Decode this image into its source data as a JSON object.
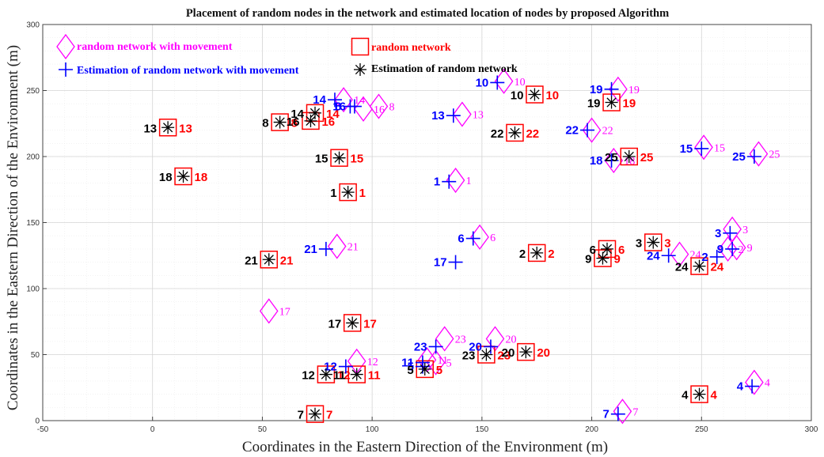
{
  "chart_data": {
    "type": "scatter",
    "title": "Placement of random nodes in the network and estimated location of nodes by proposed Algorithm",
    "xlabel": "Coordinates in the Eastern Direction of the Environment (m)",
    "ylabel": "Coordinates in the Eastern Direction of the Environment (m)",
    "xlim": [
      -50,
      300
    ],
    "ylim": [
      0,
      300
    ],
    "xticks": [
      -50,
      0,
      50,
      100,
      150,
      200,
      250,
      300
    ],
    "yticks": [
      0,
      50,
      100,
      150,
      200,
      250,
      300
    ],
    "grid": true,
    "legend_position": "top-left, inside axes",
    "colors": {
      "random_network_with_movement": "#ff00ff",
      "random_network": "#ff0000",
      "estimation_with_movement": "#0000ff",
      "estimation_random": "#000000"
    },
    "series": [
      {
        "name": "random network with movement",
        "marker": "diamond",
        "points": [
          {
            "id": 1,
            "x": 138,
            "y": 182
          },
          {
            "id": 2,
            "x": 262,
            "y": 130
          },
          {
            "id": 3,
            "x": 264,
            "y": 145
          },
          {
            "id": 4,
            "x": 274,
            "y": 29
          },
          {
            "id": 5,
            "x": 129,
            "y": 44
          },
          {
            "id": 6,
            "x": 149,
            "y": 139
          },
          {
            "id": 7,
            "x": 214,
            "y": 7
          },
          {
            "id": 8,
            "x": 103,
            "y": 238
          },
          {
            "id": 9,
            "x": 266,
            "y": 131
          },
          {
            "id": 10,
            "x": 160,
            "y": 257
          },
          {
            "id": 11,
            "x": 125,
            "y": 46
          },
          {
            "id": 12,
            "x": 93,
            "y": 45
          },
          {
            "id": 13,
            "x": 141,
            "y": 232
          },
          {
            "id": 14,
            "x": 87,
            "y": 243
          },
          {
            "id": 15,
            "x": 251,
            "y": 207
          },
          {
            "id": 16,
            "x": 96,
            "y": 236
          },
          {
            "id": 17,
            "x": 53,
            "y": 83
          },
          {
            "id": 18,
            "x": 210,
            "y": 197
          },
          {
            "id": 19,
            "x": 212,
            "y": 251
          },
          {
            "id": 20,
            "x": 156,
            "y": 62
          },
          {
            "id": 21,
            "x": 84,
            "y": 132
          },
          {
            "id": 22,
            "x": 200,
            "y": 220
          },
          {
            "id": 23,
            "x": 133,
            "y": 62
          },
          {
            "id": 24,
            "x": 240,
            "y": 126
          },
          {
            "id": 25,
            "x": 276,
            "y": 202
          }
        ]
      },
      {
        "name": "random network",
        "marker": "square",
        "points": [
          {
            "id": 1,
            "x": 89,
            "y": 173
          },
          {
            "id": 2,
            "x": 175,
            "y": 127
          },
          {
            "id": 3,
            "x": 228,
            "y": 135
          },
          {
            "id": 4,
            "x": 249,
            "y": 20
          },
          {
            "id": 5,
            "x": 124,
            "y": 39
          },
          {
            "id": 6,
            "x": 207,
            "y": 130
          },
          {
            "id": 7,
            "x": 74,
            "y": 5
          },
          {
            "id": 8,
            "x": 58,
            "y": 226
          },
          {
            "id": 9,
            "x": 205,
            "y": 123
          },
          {
            "id": 10,
            "x": 174,
            "y": 247
          },
          {
            "id": 11,
            "x": 93,
            "y": 35
          },
          {
            "id": 12,
            "x": 79,
            "y": 35
          },
          {
            "id": 13,
            "x": 7,
            "y": 222
          },
          {
            "id": 14,
            "x": 74,
            "y": 233
          },
          {
            "id": 15,
            "x": 85,
            "y": 199
          },
          {
            "id": 16,
            "x": 72,
            "y": 227
          },
          {
            "id": 17,
            "x": 91,
            "y": 74
          },
          {
            "id": 18,
            "x": 14,
            "y": 185
          },
          {
            "id": 19,
            "x": 209,
            "y": 241
          },
          {
            "id": 20,
            "x": 170,
            "y": 52
          },
          {
            "id": 21,
            "x": 53,
            "y": 122
          },
          {
            "id": 22,
            "x": 165,
            "y": 218
          },
          {
            "id": 23,
            "x": 152,
            "y": 50
          },
          {
            "id": 24,
            "x": 249,
            "y": 117
          },
          {
            "id": 25,
            "x": 217,
            "y": 200
          }
        ]
      },
      {
        "name": "Estimation of random network with movement",
        "marker": "plus",
        "points": [
          {
            "id": 1,
            "x": 135,
            "y": 181
          },
          {
            "id": 2,
            "x": 257,
            "y": 124
          },
          {
            "id": 3,
            "x": 263,
            "y": 142
          },
          {
            "id": 4,
            "x": 273,
            "y": 26
          },
          {
            "id": 5,
            "x": 123,
            "y": 41
          },
          {
            "id": 6,
            "x": 146,
            "y": 138
          },
          {
            "id": 7,
            "x": 212,
            "y": 5
          },
          {
            "id": 8,
            "x": 90,
            "y": 238
          },
          {
            "id": 9,
            "x": 264,
            "y": 130
          },
          {
            "id": 10,
            "x": 157,
            "y": 256
          },
          {
            "id": 11,
            "x": 123,
            "y": 44
          },
          {
            "id": 12,
            "x": 88,
            "y": 41
          },
          {
            "id": 13,
            "x": 137,
            "y": 231
          },
          {
            "id": 14,
            "x": 83,
            "y": 243
          },
          {
            "id": 15,
            "x": 250,
            "y": 206
          },
          {
            "id": 16,
            "x": 92,
            "y": 238
          },
          {
            "id": 17,
            "x": 138,
            "y": 120
          },
          {
            "id": 18,
            "x": 209,
            "y": 197
          },
          {
            "id": 19,
            "x": 209,
            "y": 251
          },
          {
            "id": 20,
            "x": 154,
            "y": 56
          },
          {
            "id": 21,
            "x": 79,
            "y": 130
          },
          {
            "id": 22,
            "x": 198,
            "y": 220
          },
          {
            "id": 23,
            "x": 129,
            "y": 56
          },
          {
            "id": 24,
            "x": 235,
            "y": 125
          },
          {
            "id": 25,
            "x": 274,
            "y": 200
          }
        ]
      },
      {
        "name": "Estimation of  random network",
        "marker": "asterisk",
        "points": [
          {
            "id": 1,
            "x": 89,
            "y": 173
          },
          {
            "id": 2,
            "x": 175,
            "y": 127
          },
          {
            "id": 3,
            "x": 228,
            "y": 135
          },
          {
            "id": 4,
            "x": 249,
            "y": 20
          },
          {
            "id": 5,
            "x": 124,
            "y": 39
          },
          {
            "id": 6,
            "x": 207,
            "y": 130
          },
          {
            "id": 7,
            "x": 74,
            "y": 5
          },
          {
            "id": 8,
            "x": 58,
            "y": 226
          },
          {
            "id": 9,
            "x": 205,
            "y": 123
          },
          {
            "id": 10,
            "x": 174,
            "y": 247
          },
          {
            "id": 11,
            "x": 93,
            "y": 35
          },
          {
            "id": 12,
            "x": 79,
            "y": 35
          },
          {
            "id": 13,
            "x": 7,
            "y": 222
          },
          {
            "id": 14,
            "x": 74,
            "y": 233
          },
          {
            "id": 15,
            "x": 85,
            "y": 199
          },
          {
            "id": 16,
            "x": 72,
            "y": 227
          },
          {
            "id": 17,
            "x": 91,
            "y": 74
          },
          {
            "id": 18,
            "x": 14,
            "y": 185
          },
          {
            "id": 19,
            "x": 209,
            "y": 241
          },
          {
            "id": 20,
            "x": 170,
            "y": 52
          },
          {
            "id": 21,
            "x": 53,
            "y": 122
          },
          {
            "id": 22,
            "x": 165,
            "y": 218
          },
          {
            "id": 23,
            "x": 152,
            "y": 50
          },
          {
            "id": 24,
            "x": 249,
            "y": 117
          },
          {
            "id": 25,
            "x": 217,
            "y": 200
          }
        ]
      }
    ]
  }
}
